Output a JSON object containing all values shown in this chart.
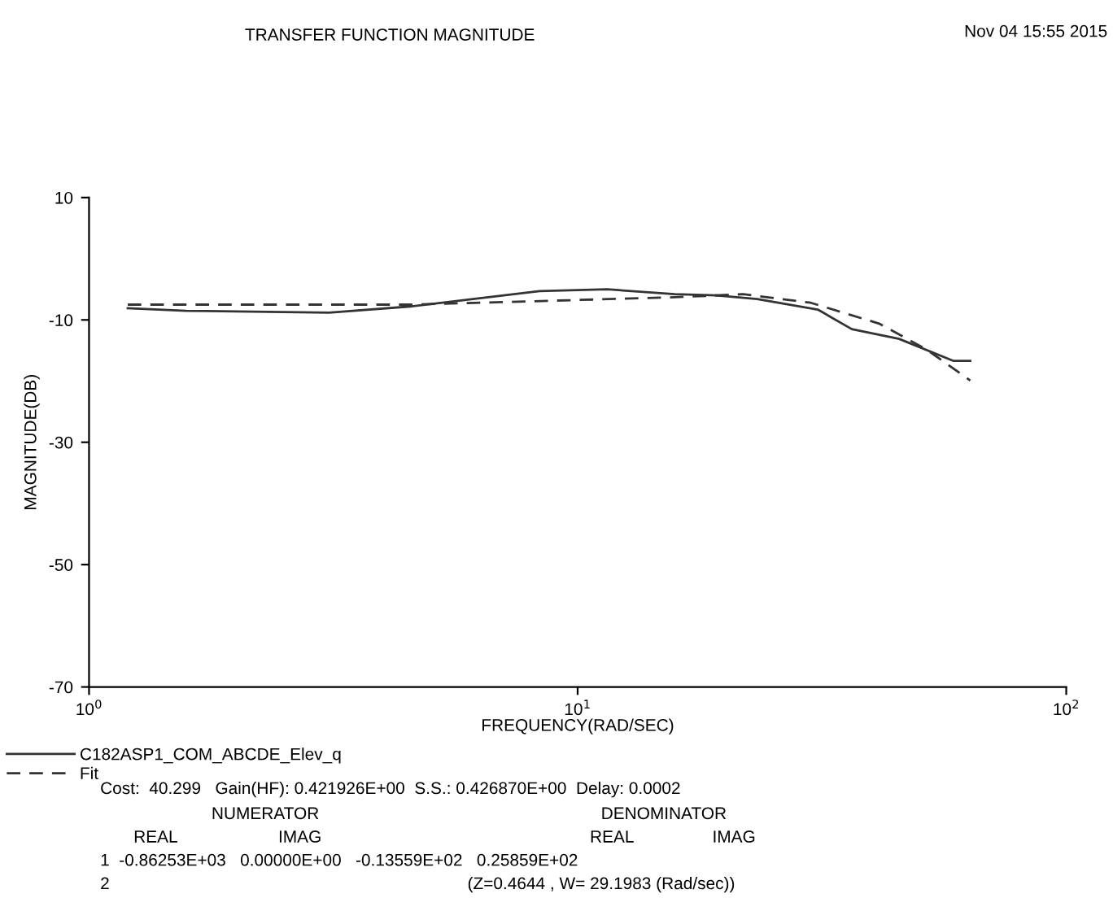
{
  "chart_data": {
    "type": "line",
    "title": "TRANSFER FUNCTION MAGNITUDE",
    "xlabel": "FREQUENCY(RAD/SEC)",
    "ylabel": "MAGNITUDE(DB)",
    "log": "x",
    "xlim": [
      1,
      100
    ],
    "xticks": [
      {
        "value": 1,
        "label": "10$^{0}$"
      },
      {
        "value": 10,
        "label": "10$^{1}$"
      },
      {
        "value": 100,
        "label": "10$^{2}$"
      }
    ],
    "ylim": [
      -70,
      10
    ],
    "yticks": [
      10,
      -10,
      -30,
      -50,
      -70
    ],
    "grid": false,
    "legend": "bottom left",
    "marker": "none",
    "series": [
      {
        "name": "C182ASP1_COM_ABCDE_Elev_q",
        "color": "#333333",
        "line_style": "solid",
        "x": [
          1.2,
          1.58,
          3.1,
          4.55,
          8.36,
          11.5,
          15.8,
          19.2,
          23.3,
          31,
          36.4,
          45.5,
          58.8,
          63.6
        ],
        "values": [
          -8.1,
          -8.5,
          -8.8,
          -7.8,
          -5.3,
          -5.0,
          -5.8,
          -6.0,
          -6.6,
          -8.3,
          -11.5,
          -13.1,
          -16.7,
          -16.7
        ]
      },
      {
        "name": "Fit",
        "color": "#333333",
        "line_style": "dashed",
        "x": [
          1.2,
          4.55,
          15.8,
          21.8,
          30,
          41.4,
          51.7,
          63.6
        ],
        "values": [
          -7.5,
          -7.5,
          -6.3,
          -5.8,
          -7.2,
          -10.6,
          -14.8,
          -19.9
        ]
      }
    ],
    "annotations": [
      "Nov 04 15:55 2015",
      "Cost:  40.299   Gain(HF): 0.421926E+00  S.S.: 0.426870E+00  Delay: 0.0002",
      "NUMERATOR",
      "DENOMINATOR",
      "REAL",
      "IMAG",
      "REAL",
      "IMAG",
      "1  -0.86253E+03   0.00000E+00   -0.13559E+02   0.25859E+02",
      "2",
      "(Z=0.4644 , W= 29.1983 (Rad/sec))"
    ]
  }
}
